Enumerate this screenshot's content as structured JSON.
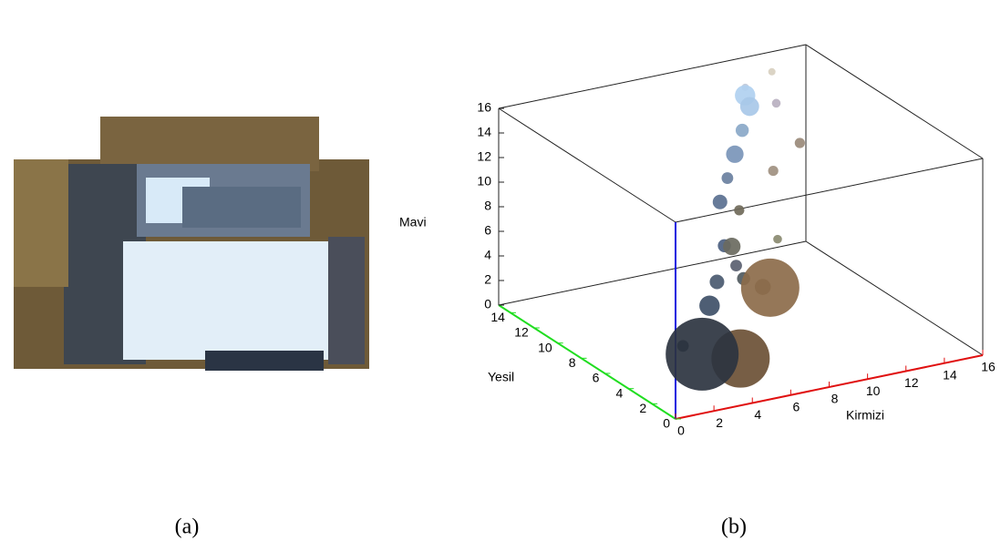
{
  "figure": {
    "panels": [
      {
        "label": "(a)"
      },
      {
        "label": "(b)"
      }
    ]
  },
  "chart_data": {
    "type": "bubble3d",
    "x_label": "Kirmizi",
    "y_label": "Yesil",
    "z_label": "Mavi",
    "x_color": "#e01010",
    "y_color": "#20dd20",
    "z_color": "#1010e0",
    "xlim": [
      0,
      16
    ],
    "ylim": [
      0,
      15
    ],
    "zlim": [
      0,
      16
    ],
    "xticks": [
      0,
      2,
      4,
      6,
      8,
      10,
      12,
      14,
      16
    ],
    "yticks": [
      0,
      2,
      4,
      6,
      8,
      10,
      12,
      14
    ],
    "zticks": [
      0,
      2,
      4,
      6,
      8,
      10,
      12,
      14,
      16
    ],
    "x": [
      2,
      4,
      8,
      1,
      3,
      4,
      5,
      6,
      5,
      7,
      6,
      7,
      8,
      9,
      10,
      10.5,
      11,
      12,
      13,
      10,
      12,
      6,
      7,
      9
    ],
    "y": [
      1,
      1,
      5,
      1,
      2,
      3,
      3,
      5,
      4,
      6,
      6,
      7,
      8,
      9,
      10,
      11.2,
      12,
      11,
      13,
      8,
      9,
      4,
      4,
      6
    ],
    "z": [
      4,
      3,
      5,
      5,
      7,
      8,
      9,
      9,
      10,
      11,
      12,
      13,
      14,
      15,
      16,
      16,
      16,
      15,
      16,
      12,
      13,
      7,
      6,
      8
    ],
    "size": [
      50,
      40,
      40,
      8,
      14,
      10,
      8,
      12,
      9,
      7,
      10,
      8,
      12,
      9,
      13,
      14,
      5,
      6,
      5,
      7,
      7,
      9,
      11,
      6
    ],
    "colors": [
      "#2c3440",
      "#6b5035",
      "#8c6b4a",
      "#203040",
      "#3f5068",
      "#4a5a70",
      "#5a6070",
      "#6a6a60",
      "#4c5f80",
      "#706a5a",
      "#5a7090",
      "#6a80a0",
      "#7a95b8",
      "#8aa8c8",
      "#a8c8e8",
      "#b0d0f0",
      "#c0c8d8",
      "#b8b0c0",
      "#d8d0c0",
      "#a09080",
      "#9a8a7a",
      "#505a60",
      "#7a6a58",
      "#8a8a70"
    ]
  }
}
